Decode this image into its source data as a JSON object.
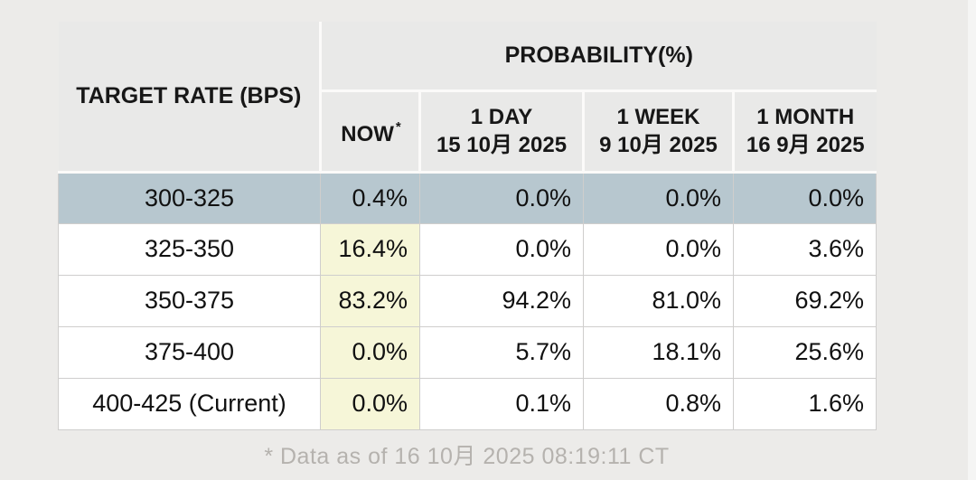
{
  "table": {
    "corner_header": "TARGET RATE (BPS)",
    "probability_header": "PROBABILITY(%)",
    "now_header": {
      "label": "NOW",
      "asterisk": "*"
    },
    "columns": [
      {
        "line1": "1 DAY",
        "line2": "15 10月 2025"
      },
      {
        "line1": "1 WEEK",
        "line2": "9 10月 2025"
      },
      {
        "line1": "1 MONTH",
        "line2": "16 9月 2025"
      }
    ],
    "rows": [
      {
        "target": "300-325",
        "now": "0.4%",
        "day": "0.0%",
        "week": "0.0%",
        "month": "0.0%"
      },
      {
        "target": "325-350",
        "now": "16.4%",
        "day": "0.0%",
        "week": "0.0%",
        "month": "3.6%"
      },
      {
        "target": "350-375",
        "now": "83.2%",
        "day": "94.2%",
        "week": "81.0%",
        "month": "69.2%"
      },
      {
        "target": "375-400",
        "now": "0.0%",
        "day": "5.7%",
        "week": "18.1%",
        "month": "25.6%"
      },
      {
        "target": "400-425 (Current)",
        "now": "0.0%",
        "day": "0.1%",
        "week": "0.8%",
        "month": "1.6%"
      }
    ],
    "footer_note": "* Data as of 16 10月 2025 08:19:11 CT"
  },
  "colors": {
    "page_bg": "#ecebe9",
    "header_bg": "#e9e9e8",
    "highlight_row_bg": "#b7c7cf",
    "now_column_highlight_bg": "#f6f6d8",
    "footer_text": "#b5b2ae",
    "cell_border": "#cfcecd"
  },
  "chart_data": {
    "type": "table",
    "title": "PROBABILITY(%)",
    "columns": [
      "TARGET RATE (BPS)",
      "NOW *",
      "1 DAY 15 10月 2025",
      "1 WEEK 9 10月 2025",
      "1 MONTH 16 9月 2025"
    ],
    "rows": [
      [
        "300-325",
        0.4,
        0.0,
        0.0,
        0.0
      ],
      [
        "325-350",
        16.4,
        0.0,
        0.0,
        3.6
      ],
      [
        "350-375",
        83.2,
        94.2,
        81.0,
        69.2
      ],
      [
        "375-400",
        0.0,
        5.7,
        18.1,
        25.6
      ],
      [
        "400-425 (Current)",
        0.0,
        0.1,
        0.8,
        1.6
      ]
    ],
    "highlighted_row": "300-325",
    "note": "* Data as of 16 10月 2025 08:19:11 CT"
  }
}
